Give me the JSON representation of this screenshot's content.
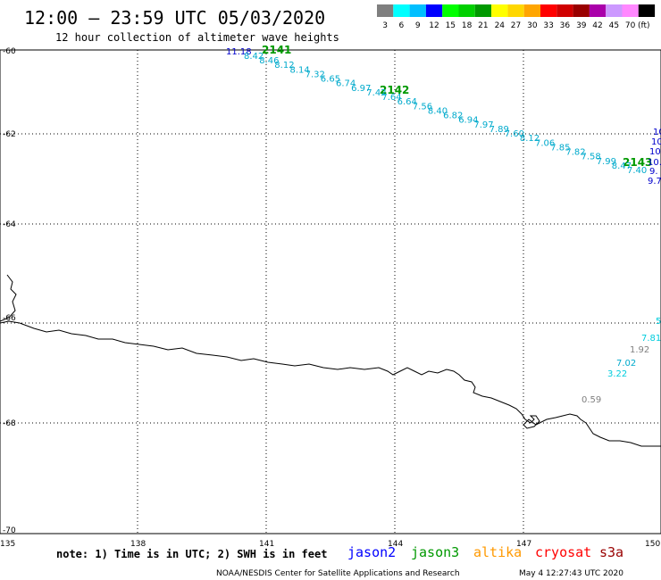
{
  "header": {
    "title": "12:00 – 23:59 UTC 05/03/2020",
    "subtitle": "12 hour collection of altimeter wave heights"
  },
  "legend": {
    "unit": "(ft)",
    "bins": [
      {
        "label": "3",
        "color": "#7f7f7f"
      },
      {
        "label": "6",
        "color": "#00ffff"
      },
      {
        "label": "9",
        "color": "#00bfff"
      },
      {
        "label": "12",
        "color": "#0000ff"
      },
      {
        "label": "15",
        "color": "#00ff00"
      },
      {
        "label": "18",
        "color": "#00d000"
      },
      {
        "label": "21",
        "color": "#009900"
      },
      {
        "label": "24",
        "color": "#ffff00"
      },
      {
        "label": "27",
        "color": "#ffd700"
      },
      {
        "label": "30",
        "color": "#ffa500"
      },
      {
        "label": "33",
        "color": "#ff0000"
      },
      {
        "label": "36",
        "color": "#d00000"
      },
      {
        "label": "39",
        "color": "#990000"
      },
      {
        "label": "42",
        "color": "#aa00aa"
      },
      {
        "label": "45",
        "color": "#cc99ff"
      },
      {
        "label": "70",
        "color": "#ff88ff"
      },
      {
        "label": "",
        "color": "#000000"
      }
    ]
  },
  "axes": {
    "lat_labels": [
      "-60",
      "-62",
      "-64",
      "-66",
      "-68",
      "-70"
    ],
    "lon_labels": [
      "135",
      "138",
      "141",
      "144",
      "147",
      "150"
    ]
  },
  "times": [
    "2141",
    "2142",
    "2143"
  ],
  "track_main": {
    "color": "#00aacc",
    "values": [
      "8.42",
      "8.46",
      "8.12",
      "8.14",
      "7.32",
      "6.65",
      "6.74",
      "6.97",
      "7.42",
      "7.64",
      "6.64",
      "7.56",
      "8.40",
      "6.82",
      "6.94",
      "7.97",
      "7.89",
      "7.60",
      "8.12",
      "7.06",
      "7.85",
      "7.82",
      "7.58",
      "7.99",
      "8.47",
      "7.40"
    ]
  },
  "track_main_first": {
    "value": "11.18",
    "color": "#0000cc"
  },
  "edge_values": [
    "10",
    "10",
    "10",
    "10.",
    "9.",
    "9.7"
  ],
  "edge_lower": [
    "5",
    "7.81"
  ],
  "lower_track": [
    {
      "value": "1.92",
      "color": "#7f7f7f"
    },
    {
      "value": "7.02",
      "color": "#00aacc"
    },
    {
      "value": "3.22",
      "color": "#00ccdd"
    },
    {
      "value": "0.59",
      "color": "#7f7f7f"
    }
  ],
  "footer": {
    "note": "note: 1) Time is in UTC; 2) SWH is in feet",
    "satellites": [
      {
        "name": "jason2",
        "color": "#0000ff"
      },
      {
        "name": "jason3",
        "color": "#009900"
      },
      {
        "name": "altika",
        "color": "#ff9900"
      },
      {
        "name": "cryosat",
        "color": "#ff0000"
      },
      {
        "name": "s3a",
        "color": "#990000"
      }
    ],
    "credit": "NOAA/NESDIS Center for Satellite Applications and Research",
    "timestamp": "May  4 12:27:43 UTC 2020"
  }
}
